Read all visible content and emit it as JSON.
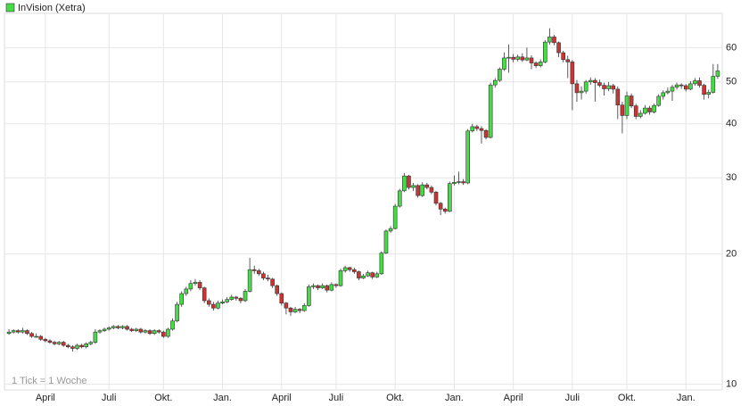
{
  "chart_data": {
    "type": "candlestick",
    "title": "InVision (Xetra)",
    "note": "1 Tick = 1 Woche",
    "log_scale": true,
    "grid": true,
    "up_color": "#44dd44",
    "down_color": "#cc3333",
    "ylim": [
      9.7,
      72
    ],
    "yticks": [
      10,
      20,
      30,
      40,
      50,
      60
    ],
    "xlim": [
      -1,
      157
    ],
    "xticks": [
      {
        "value": 8,
        "label": "April"
      },
      {
        "value": 22,
        "label": "Juli"
      },
      {
        "value": 34,
        "label": "Okt."
      },
      {
        "value": 47,
        "label": "Jan."
      },
      {
        "value": 60,
        "label": "April"
      },
      {
        "value": 72,
        "label": "Juli"
      },
      {
        "value": 85,
        "label": "Okt."
      },
      {
        "value": 98,
        "label": "Jan."
      },
      {
        "value": 111,
        "label": "April"
      },
      {
        "value": 124,
        "label": "Juli"
      },
      {
        "value": 136,
        "label": "Okt."
      },
      {
        "value": 149,
        "label": "Jan."
      }
    ],
    "ohlc": [
      [
        13.1,
        13.4,
        13.0,
        13.2
      ],
      [
        13.2,
        13.4,
        13.1,
        13.3
      ],
      [
        13.3,
        13.4,
        13.1,
        13.2
      ],
      [
        13.2,
        13.5,
        13.1,
        13.3
      ],
      [
        13.3,
        13.4,
        13.0,
        13.1
      ],
      [
        13.1,
        13.2,
        12.8,
        12.9
      ],
      [
        12.9,
        13.1,
        12.8,
        12.9
      ],
      [
        12.9,
        13.0,
        12.6,
        12.7
      ],
      [
        12.7,
        12.8,
        12.5,
        12.6
      ],
      [
        12.6,
        12.7,
        12.4,
        12.5
      ],
      [
        12.5,
        12.6,
        12.3,
        12.4
      ],
      [
        12.4,
        12.6,
        12.3,
        12.5
      ],
      [
        12.5,
        12.6,
        12.2,
        12.3
      ],
      [
        12.3,
        12.4,
        12.1,
        12.2
      ],
      [
        12.2,
        12.3,
        11.9,
        12.1
      ],
      [
        12.1,
        12.4,
        12.0,
        12.3
      ],
      [
        12.3,
        12.4,
        12.1,
        12.2
      ],
      [
        12.2,
        12.5,
        12.1,
        12.4
      ],
      [
        12.4,
        12.6,
        12.3,
        12.5
      ],
      [
        12.5,
        13.4,
        12.4,
        13.2
      ],
      [
        13.2,
        13.4,
        13.1,
        13.3
      ],
      [
        13.3,
        13.5,
        13.2,
        13.4
      ],
      [
        13.4,
        13.6,
        13.3,
        13.5
      ],
      [
        13.5,
        13.7,
        13.4,
        13.6
      ],
      [
        13.6,
        13.7,
        13.4,
        13.5
      ],
      [
        13.5,
        13.7,
        13.4,
        13.6
      ],
      [
        13.6,
        13.7,
        13.3,
        13.4
      ],
      [
        13.4,
        13.5,
        13.2,
        13.3
      ],
      [
        13.3,
        13.5,
        13.2,
        13.4
      ],
      [
        13.4,
        13.5,
        13.1,
        13.2
      ],
      [
        13.2,
        13.4,
        13.1,
        13.3
      ],
      [
        13.3,
        13.4,
        13.0,
        13.1
      ],
      [
        13.1,
        13.4,
        13.0,
        13.3
      ],
      [
        13.3,
        13.4,
        13.1,
        13.2
      ],
      [
        13.2,
        13.3,
        12.8,
        12.9
      ],
      [
        12.9,
        13.5,
        12.8,
        13.4
      ],
      [
        13.4,
        14.2,
        13.3,
        14.0
      ],
      [
        14.0,
        15.5,
        13.9,
        15.3
      ],
      [
        15.3,
        16.4,
        15.1,
        16.2
      ],
      [
        16.2,
        16.8,
        16.0,
        16.6
      ],
      [
        16.6,
        17.4,
        16.4,
        17.1
      ],
      [
        17.1,
        17.5,
        16.9,
        17.2
      ],
      [
        17.2,
        17.4,
        16.5,
        16.7
      ],
      [
        16.7,
        16.8,
        15.4,
        15.6
      ],
      [
        15.6,
        15.8,
        15.1,
        15.3
      ],
      [
        15.3,
        15.5,
        14.8,
        15.0
      ],
      [
        15.0,
        15.6,
        14.9,
        15.4
      ],
      [
        15.4,
        15.7,
        15.3,
        15.5
      ],
      [
        15.5,
        15.9,
        15.4,
        15.7
      ],
      [
        15.7,
        16.1,
        15.6,
        15.9
      ],
      [
        15.9,
        16.0,
        15.6,
        15.8
      ],
      [
        15.8,
        15.9,
        15.4,
        15.6
      ],
      [
        15.6,
        16.6,
        15.5,
        16.4
      ],
      [
        16.4,
        19.6,
        16.3,
        18.4
      ],
      [
        18.4,
        18.8,
        18.0,
        18.3
      ],
      [
        18.3,
        18.5,
        17.8,
        18.0
      ],
      [
        18.0,
        18.2,
        17.4,
        17.6
      ],
      [
        17.6,
        17.9,
        17.3,
        17.5
      ],
      [
        17.5,
        17.6,
        16.7,
        16.9
      ],
      [
        16.9,
        17.0,
        16.0,
        16.2
      ],
      [
        16.2,
        16.3,
        15.2,
        15.4
      ],
      [
        15.4,
        15.5,
        14.5,
        15.0
      ],
      [
        15.0,
        15.1,
        14.4,
        14.7
      ],
      [
        14.7,
        15.1,
        14.6,
        14.9
      ],
      [
        14.9,
        15.0,
        14.6,
        14.8
      ],
      [
        14.8,
        15.4,
        14.7,
        15.2
      ],
      [
        15.2,
        17.0,
        15.1,
        16.8
      ],
      [
        16.8,
        17.1,
        16.6,
        16.9
      ],
      [
        16.9,
        17.0,
        16.5,
        16.7
      ],
      [
        16.7,
        17.1,
        16.6,
        16.9
      ],
      [
        16.9,
        17.0,
        16.3,
        16.5
      ],
      [
        16.5,
        17.2,
        16.4,
        17.0
      ],
      [
        17.0,
        17.1,
        16.7,
        16.9
      ],
      [
        16.9,
        18.5,
        16.8,
        18.3
      ],
      [
        18.3,
        18.8,
        18.1,
        18.6
      ],
      [
        18.6,
        18.7,
        18.2,
        18.4
      ],
      [
        18.4,
        18.6,
        18.0,
        18.2
      ],
      [
        18.2,
        18.3,
        17.4,
        17.6
      ],
      [
        17.6,
        18.0,
        17.5,
        17.8
      ],
      [
        17.8,
        18.3,
        17.7,
        18.1
      ],
      [
        18.1,
        18.2,
        17.5,
        17.7
      ],
      [
        17.7,
        18.2,
        17.6,
        18.0
      ],
      [
        18.0,
        20.3,
        17.9,
        20.1
      ],
      [
        20.1,
        22.8,
        20.0,
        22.6
      ],
      [
        22.6,
        23.2,
        22.4,
        22.9
      ],
      [
        22.9,
        26.1,
        22.8,
        25.8
      ],
      [
        25.8,
        28.3,
        25.6,
        28.0
      ],
      [
        28.0,
        30.8,
        27.8,
        30.3
      ],
      [
        30.3,
        30.5,
        28.2,
        28.5
      ],
      [
        28.5,
        29.2,
        28.0,
        28.8
      ],
      [
        28.8,
        29.0,
        27.0,
        27.3
      ],
      [
        27.3,
        29.3,
        27.1,
        28.9
      ],
      [
        28.9,
        29.2,
        28.2,
        28.5
      ],
      [
        28.5,
        28.8,
        27.5,
        27.8
      ],
      [
        27.8,
        28.0,
        25.9,
        26.2
      ],
      [
        26.2,
        26.4,
        24.6,
        25.4
      ],
      [
        25.4,
        25.6,
        24.8,
        25.1
      ],
      [
        25.1,
        29.4,
        25.0,
        29.1
      ],
      [
        29.1,
        30.4,
        28.8,
        29.3
      ],
      [
        29.3,
        31.0,
        29.0,
        29.4
      ],
      [
        29.4,
        29.8,
        28.9,
        29.2
      ],
      [
        29.2,
        38.9,
        29.0,
        38.5
      ],
      [
        38.5,
        40.0,
        38.2,
        39.4
      ],
      [
        39.4,
        39.8,
        38.5,
        39.0
      ],
      [
        39.0,
        39.5,
        36.0,
        38.6
      ],
      [
        38.6,
        38.9,
        36.8,
        37.2
      ],
      [
        37.2,
        49.8,
        37.0,
        49.2
      ],
      [
        49.2,
        51.0,
        48.5,
        50.4
      ],
      [
        50.4,
        54.0,
        50.0,
        53.5
      ],
      [
        53.5,
        58.5,
        53.0,
        56.8
      ],
      [
        56.8,
        61.0,
        52.5,
        57.0
      ],
      [
        57.0,
        58.0,
        55.5,
        56.4
      ],
      [
        56.4,
        57.8,
        55.8,
        57.1
      ],
      [
        57.1,
        58.2,
        55.6,
        56.2
      ],
      [
        56.2,
        60.0,
        55.8,
        56.8
      ],
      [
        56.8,
        57.6,
        53.5,
        55.3
      ],
      [
        55.3,
        55.8,
        53.8,
        54.5
      ],
      [
        54.5,
        56.4,
        54.0,
        55.6
      ],
      [
        55.6,
        62.5,
        55.2,
        61.8
      ],
      [
        61.8,
        66.5,
        61.0,
        63.5
      ],
      [
        63.5,
        64.2,
        60.8,
        61.6
      ],
      [
        61.6,
        62.0,
        57.0,
        58.4
      ],
      [
        58.4,
        59.0,
        55.5,
        56.3
      ],
      [
        56.3,
        57.5,
        51.0,
        55.6
      ],
      [
        55.6,
        56.2,
        43.0,
        49.5
      ],
      [
        49.5,
        50.5,
        45.0,
        47.2
      ],
      [
        47.2,
        48.8,
        45.5,
        47.6
      ],
      [
        47.6,
        50.5,
        47.0,
        50.0
      ],
      [
        50.0,
        51.2,
        49.3,
        50.4
      ],
      [
        50.4,
        51.0,
        45.0,
        49.8
      ],
      [
        49.8,
        50.6,
        48.6,
        49.1
      ],
      [
        49.1,
        49.8,
        46.5,
        48.2
      ],
      [
        48.2,
        50.0,
        47.6,
        49.0
      ],
      [
        49.0,
        49.5,
        47.0,
        48.1
      ],
      [
        48.1,
        48.8,
        41.0,
        44.2
      ],
      [
        44.2,
        45.0,
        38.0,
        41.8
      ],
      [
        41.8,
        47.5,
        41.0,
        46.4
      ],
      [
        46.4,
        47.0,
        43.5,
        44.0
      ],
      [
        44.0,
        44.5,
        41.0,
        41.6
      ],
      [
        41.6,
        43.0,
        41.2,
        42.3
      ],
      [
        42.3,
        44.2,
        42.0,
        43.5
      ],
      [
        43.5,
        44.0,
        42.0,
        42.6
      ],
      [
        42.6,
        44.5,
        42.3,
        44.1
      ],
      [
        44.1,
        46.8,
        43.8,
        46.3
      ],
      [
        46.3,
        47.8,
        45.5,
        47.2
      ],
      [
        47.2,
        48.5,
        46.8,
        47.6
      ],
      [
        47.6,
        49.2,
        45.2,
        48.6
      ],
      [
        48.6,
        49.8,
        48.0,
        49.2
      ],
      [
        49.2,
        49.6,
        48.2,
        49.0
      ],
      [
        49.0,
        49.4,
        47.5,
        48.1
      ],
      [
        48.1,
        50.2,
        47.8,
        49.5
      ],
      [
        49.5,
        51.0,
        49.0,
        50.3
      ],
      [
        50.3,
        51.2,
        48.5,
        49.1
      ],
      [
        49.1,
        49.5,
        45.5,
        46.8
      ],
      [
        46.8,
        48.0,
        45.8,
        47.3
      ],
      [
        47.3,
        55.0,
        47.0,
        51.5
      ],
      [
        51.5,
        55.0,
        50.8,
        53.0
      ]
    ]
  }
}
